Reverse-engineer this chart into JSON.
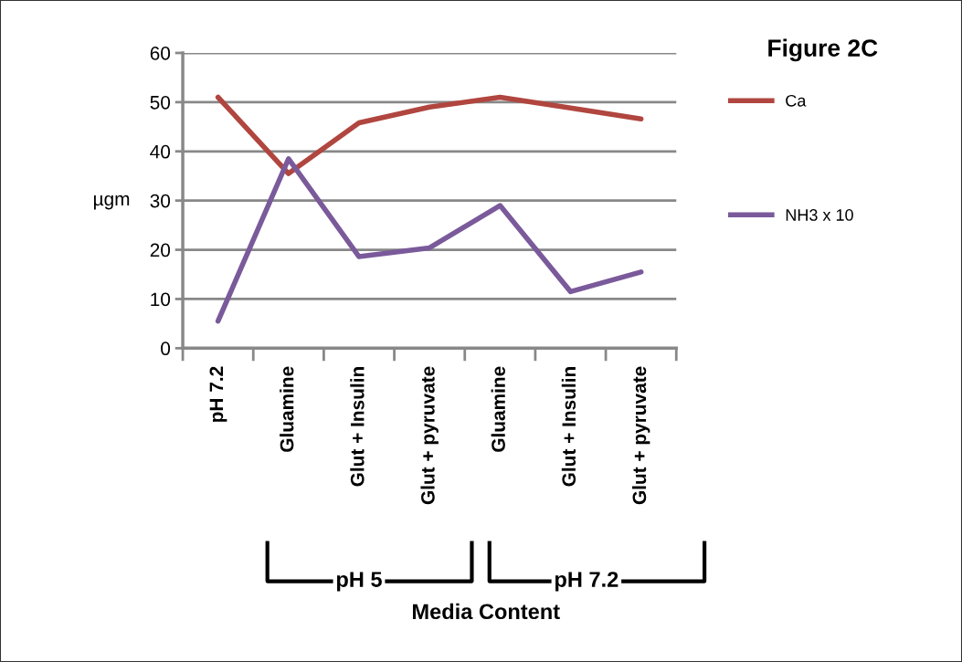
{
  "chart_data": {
    "type": "line",
    "title": "Figure 2C",
    "xlabel": "Media Content",
    "ylabel": "µgm",
    "categories": [
      "pH 7.2",
      "Gluamine",
      "Glut + Insulin",
      "Glut + pyruvate",
      "Gluamine",
      "Glut + Insulin",
      "Glut + pyruvate"
    ],
    "series": [
      {
        "name": "Ca",
        "color": "#b0463f",
        "values": [
          51,
          35.5,
          45.8,
          49,
          51,
          48.8,
          46.6
        ]
      },
      {
        "name": "NH3 x 10",
        "color": "#7a5a9a",
        "values": [
          5.5,
          38.5,
          18.6,
          20.4,
          29,
          11.5,
          15.5
        ]
      }
    ],
    "ylim": [
      0,
      60
    ],
    "yticks": [
      0,
      10,
      20,
      30,
      40,
      50,
      60
    ],
    "grid": "y",
    "legend": "right",
    "marker": "none",
    "line_style": "solid",
    "annotations": [
      "pH 5",
      "pH 7.2"
    ]
  }
}
